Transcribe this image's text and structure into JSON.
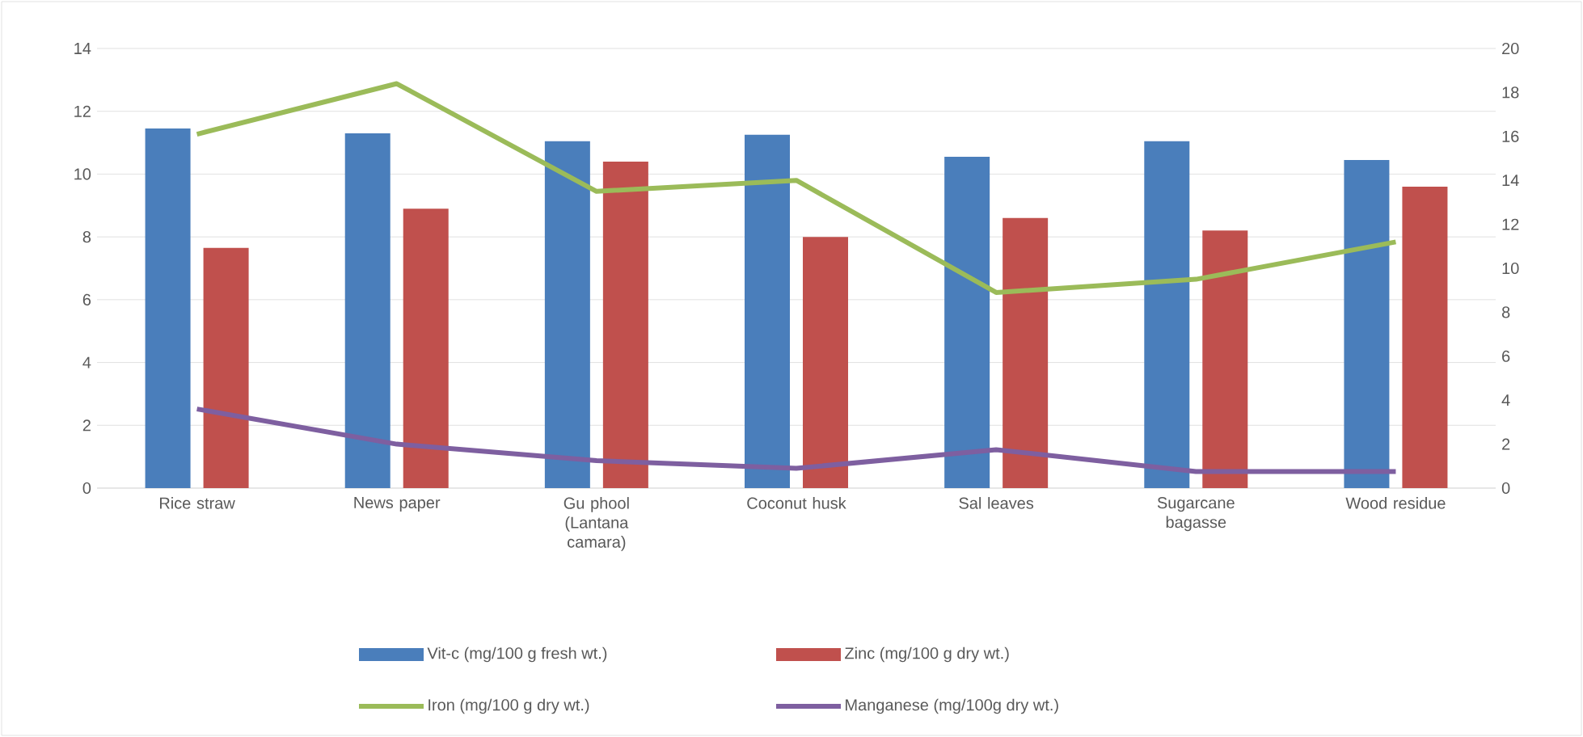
{
  "chart_data": {
    "type": "bar",
    "categories": [
      "Rice straw",
      "News paper",
      "Gu phool (Lantana camara)",
      "Coconut husk",
      "Sal leaves",
      "Sugarcane bagasse",
      "Wood residue"
    ],
    "series": [
      {
        "name": "Vit-c (mg/100 g fresh wt.)",
        "color": "#4a7ebb",
        "values": [
          11.45,
          11.3,
          11.05,
          11.25,
          10.55,
          11.05,
          10.45
        ]
      },
      {
        "name": "Zinc (mg/100 g dry wt.)",
        "color": "#c0504d",
        "values": [
          7.65,
          8.9,
          10.4,
          8.0,
          8.6,
          8.2,
          9.6
        ]
      },
      {
        "name": "Iron (mg/100 g dry wt.)",
        "type": "line",
        "axis": "y2",
        "color": "#9bbb59",
        "values": [
          16.1,
          18.4,
          13.5,
          14.0,
          8.9,
          9.5,
          11.2
        ]
      },
      {
        "name": "Manganese (mg/100g dry wt.)",
        "type": "line",
        "axis": "y2",
        "color": "#7e5fa0",
        "values": [
          3.6,
          2.0,
          1.25,
          0.9,
          1.75,
          0.75,
          0.75
        ]
      }
    ],
    "ylim": [
      0,
      14
    ],
    "yticks": [
      0,
      2,
      4,
      6,
      8,
      10,
      12,
      14
    ],
    "y2lim": [
      0,
      20
    ],
    "y2ticks": [
      0,
      2,
      4,
      6,
      8,
      10,
      12,
      14,
      16,
      18,
      20
    ],
    "grid": "y",
    "legend": "bottom"
  }
}
